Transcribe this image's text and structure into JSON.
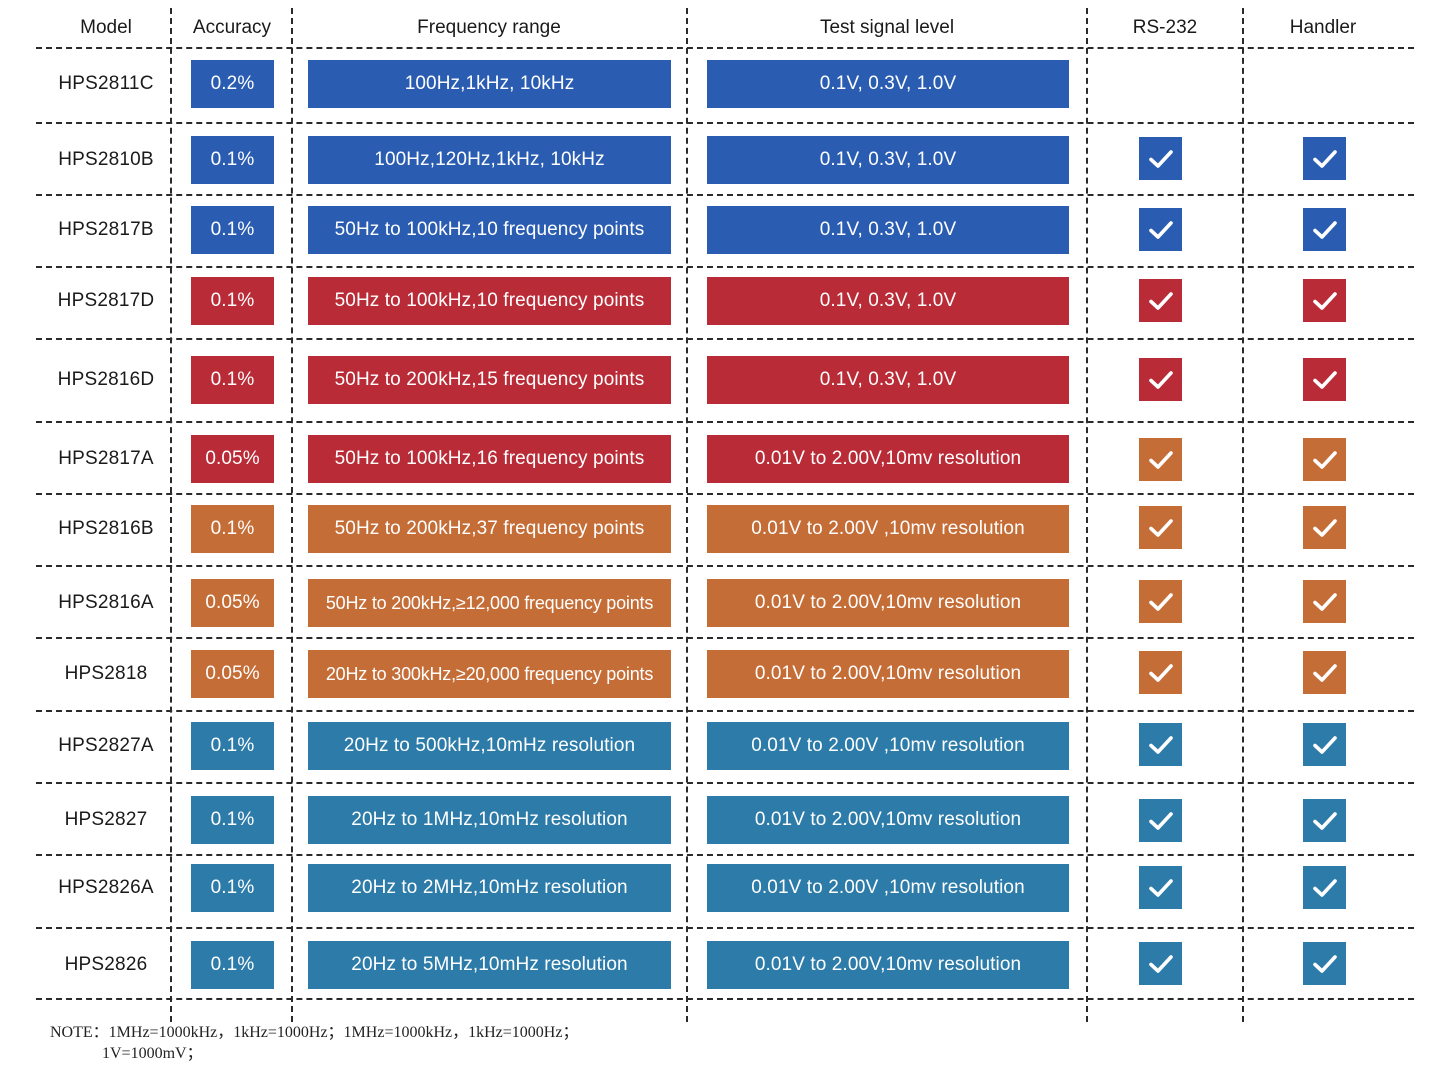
{
  "headers": {
    "model": "Model",
    "accuracy": "Accuracy",
    "frequency": "Frequency range",
    "signal": "Test signal level",
    "rs232": "RS-232",
    "handler": "Handler"
  },
  "colors": {
    "blue": "#2a5db2",
    "red": "#b92b36",
    "orange": "#c56d37",
    "teal": "#2d7ba9"
  },
  "rows": [
    {
      "model": "HPS2811C",
      "accuracy": "0.2%",
      "frequency": "100Hz,1kHz, 10kHz",
      "signal": "0.1V, 0.3V, 1.0V",
      "color": "blue",
      "rs232": false,
      "handler": false
    },
    {
      "model": "HPS2810B",
      "accuracy": "0.1%",
      "frequency": "100Hz,120Hz,1kHz, 10kHz",
      "signal": "0.1V, 0.3V, 1.0V",
      "color": "blue",
      "rs232": true,
      "handler": true
    },
    {
      "model": "HPS2817B",
      "accuracy": "0.1%",
      "frequency": "50Hz to 100kHz,10 frequency points",
      "signal": "0.1V, 0.3V, 1.0V",
      "color": "blue",
      "rs232": true,
      "handler": true
    },
    {
      "model": "HPS2817D",
      "accuracy": "0.1%",
      "frequency": "50Hz to 100kHz,10 frequency points",
      "signal": "0.1V, 0.3V, 1.0V",
      "color": "red",
      "rs232": true,
      "handler": true
    },
    {
      "model": "HPS2816D",
      "accuracy": "0.1%",
      "frequency": "50Hz to 200kHz,15 frequency points",
      "signal": "0.1V, 0.3V, 1.0V",
      "color": "red",
      "rs232": true,
      "handler": true
    },
    {
      "model": "HPS2817A",
      "accuracy": "0.05%",
      "frequency": "50Hz to 100kHz,16 frequency points",
      "signal": "0.01V to 2.00V,10mv resolution",
      "color": "red",
      "rs232": true,
      "handler": true,
      "check_color": "orange"
    },
    {
      "model": "HPS2816B",
      "accuracy": "0.1%",
      "frequency": "50Hz to 200kHz,37 frequency points",
      "signal": "0.01V to 2.00V ,10mv resolution",
      "color": "orange",
      "rs232": true,
      "handler": true
    },
    {
      "model": "HPS2816A",
      "accuracy": "0.05%",
      "frequency": "50Hz to 200kHz,≥12,000 frequency points",
      "signal": "0.01V to 2.00V,10mv resolution",
      "color": "orange",
      "rs232": true,
      "handler": true
    },
    {
      "model": "HPS2818",
      "accuracy": "0.05%",
      "frequency": "20Hz to 300kHz,≥20,000 frequency points",
      "signal": "0.01V to 2.00V,10mv resolution",
      "color": "orange",
      "rs232": true,
      "handler": true
    },
    {
      "model": "HPS2827A",
      "accuracy": "0.1%",
      "frequency": "20Hz to 500kHz,10mHz resolution",
      "signal": "0.01V to 2.00V ,10mv resolution",
      "color": "teal",
      "rs232": true,
      "handler": true
    },
    {
      "model": "HPS2827",
      "accuracy": "0.1%",
      "frequency": "20Hz to 1MHz,10mHz resolution",
      "signal": "0.01V to 2.00V,10mv resolution",
      "color": "teal",
      "rs232": true,
      "handler": true
    },
    {
      "model": "HPS2826A",
      "accuracy": "0.1%",
      "frequency": "20Hz to 2MHz,10mHz resolution",
      "signal": "0.01V to 2.00V ,10mv resolution",
      "color": "teal",
      "rs232": true,
      "handler": true
    },
    {
      "model": "HPS2826",
      "accuracy": "0.1%",
      "frequency": "20Hz to 5MHz,10mHz resolution",
      "signal": "0.01V to 2.00V,10mv resolution",
      "color": "teal",
      "rs232": true,
      "handler": true
    }
  ],
  "note": {
    "line1": "NOTE：1MHz=1000kHz，1kHz=1000Hz；1MHz=1000kHz，1kHz=1000Hz；",
    "line2": "1V=1000mV；"
  }
}
